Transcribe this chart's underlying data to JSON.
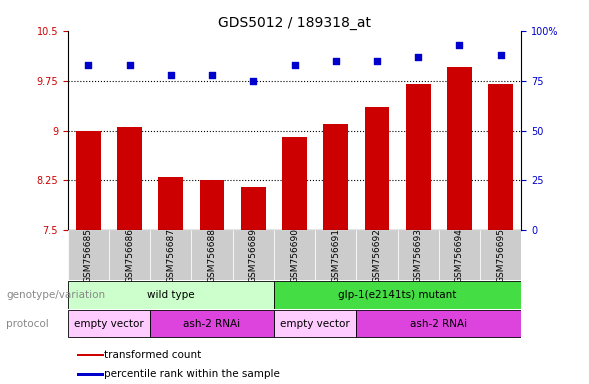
{
  "title": "GDS5012 / 189318_at",
  "samples": [
    "GSM756685",
    "GSM756686",
    "GSM756687",
    "GSM756688",
    "GSM756689",
    "GSM756690",
    "GSM756691",
    "GSM756692",
    "GSM756693",
    "GSM756694",
    "GSM756695"
  ],
  "bar_values": [
    9.0,
    9.05,
    8.3,
    8.25,
    8.15,
    8.9,
    9.1,
    9.35,
    9.7,
    9.95,
    9.7
  ],
  "dot_values": [
    83,
    83,
    78,
    78,
    75,
    83,
    85,
    85,
    87,
    93,
    88
  ],
  "bar_color": "#cc0000",
  "dot_color": "#0000cc",
  "ylim_left": [
    7.5,
    10.5
  ],
  "ylim_right": [
    0,
    100
  ],
  "yticks_left": [
    7.5,
    8.25,
    9.0,
    9.75,
    10.5
  ],
  "yticks_left_labels": [
    "7.5",
    "8.25",
    "9",
    "9.75",
    "10.5"
  ],
  "yticks_right": [
    0,
    25,
    50,
    75,
    100
  ],
  "yticks_right_labels": [
    "0",
    "25",
    "50",
    "75",
    "100%"
  ],
  "hlines": [
    8.25,
    9.0,
    9.75
  ],
  "genotype_groups": [
    {
      "label": "wild type",
      "start": 0,
      "end": 5,
      "color": "#ccffcc"
    },
    {
      "label": "glp-1(e2141ts) mutant",
      "start": 5,
      "end": 11,
      "color": "#44dd44"
    }
  ],
  "protocol_groups": [
    {
      "label": "empty vector",
      "start": 0,
      "end": 2,
      "color": "#ffccff"
    },
    {
      "label": "ash-2 RNAi",
      "start": 2,
      "end": 5,
      "color": "#dd44dd"
    },
    {
      "label": "empty vector",
      "start": 5,
      "end": 7,
      "color": "#ffccff"
    },
    {
      "label": "ash-2 RNAi",
      "start": 7,
      "end": 11,
      "color": "#dd44dd"
    }
  ],
  "legend_items": [
    {
      "color": "#cc0000",
      "label": "transformed count"
    },
    {
      "color": "#0000cc",
      "label": "percentile rank within the sample"
    }
  ],
  "genotype_label": "genotype/variation",
  "protocol_label": "protocol",
  "bg_color": "#ffffff",
  "plot_bg_color": "#ffffff",
  "tick_bg_color": "#cccccc",
  "title_fontsize": 10,
  "tick_fontsize": 7,
  "label_fontsize": 8,
  "bar_width": 0.6
}
